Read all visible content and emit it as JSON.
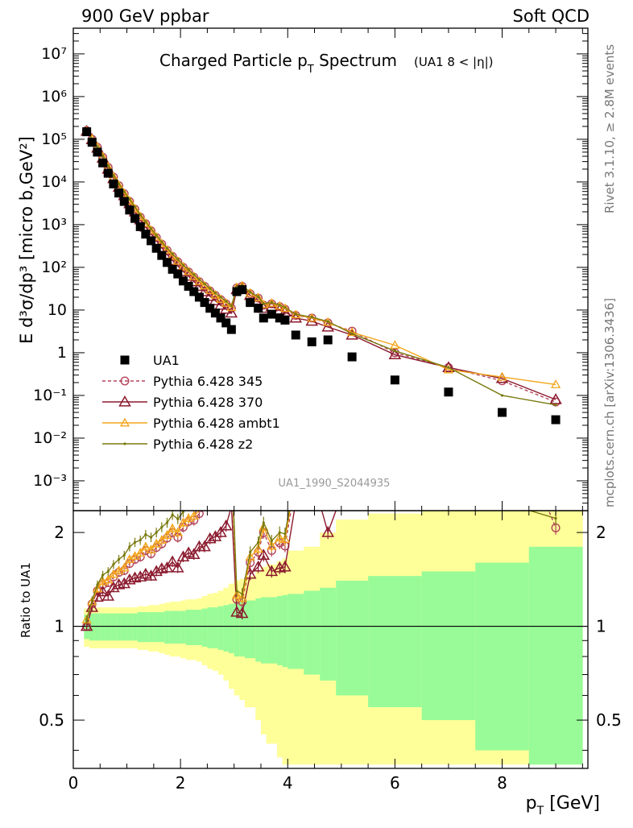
{
  "header": {
    "left": "900 GeV ppbar",
    "right": "Soft QCD"
  },
  "side_labels": {
    "top": "Rivet 3.1.10, ≥ 2.8M events",
    "bottom": "mcplots.cern.ch [arXiv:1306.3436]"
  },
  "chart_data": {
    "type": "scatter",
    "title_main": "Charged Particle p",
    "title_sub": "T",
    "title_rest": " Spectrum",
    "title_note": "(UA1   8 < |η|)",
    "analysis_id": "UA1_1990_S2044935",
    "ylabel": "E d³σ/dp³ [micro b,GeV²]",
    "xlabel_main": "p",
    "xlabel_sub": "T",
    "xlabel_rest": " [GeV]",
    "ratio_ylabel": "Ratio to UA1",
    "log_y": true,
    "xlim": [
      0,
      9.6
    ],
    "ylim": [
      0.0002,
      40000000
    ],
    "ratio_ylim": [
      0.35,
      2.35
    ],
    "x_ticks": [
      "0",
      "2",
      "4",
      "6",
      "8"
    ],
    "y_ticks": [
      "10⁻³",
      "10⁻²",
      "10⁻¹",
      "1",
      "10",
      "10²",
      "10³",
      "10⁴",
      "10⁵",
      "10⁶",
      "10⁷"
    ],
    "ratio_ticks": [
      "0.5",
      "1",
      "2"
    ],
    "colors": {
      "data": "#000000",
      "p345": "#b3445a",
      "p370": "#8b1a2e",
      "ambt1": "#f3a51a",
      "z2": "#7a7a10",
      "band_inner": "#98fb98",
      "band_outer": "#ffff99"
    },
    "legend": {
      "placement": "center-left",
      "entries": [
        "UA1",
        "Pythia 6.428 345",
        "Pythia 6.428 370",
        "Pythia 6.428 ambt1",
        "Pythia 6.428 z2"
      ]
    },
    "series": [
      {
        "name": "UA1",
        "x": [
          0.25,
          0.35,
          0.45,
          0.55,
          0.65,
          0.75,
          0.85,
          0.95,
          1.05,
          1.15,
          1.25,
          1.35,
          1.45,
          1.55,
          1.65,
          1.75,
          1.85,
          1.95,
          2.05,
          2.15,
          2.25,
          2.35,
          2.45,
          2.55,
          2.65,
          2.75,
          2.85,
          2.95,
          3.05,
          3.15,
          3.3,
          3.45,
          3.55,
          3.7,
          3.85,
          3.95,
          4.15,
          4.45,
          4.75,
          5.2,
          6.0,
          7.0,
          8.0,
          9.0
        ],
        "values": [
          150000,
          85000,
          50000,
          28000,
          16000,
          9000,
          5500,
          3500,
          2200,
          1400,
          900,
          600,
          420,
          280,
          190,
          130,
          90,
          70,
          48,
          36,
          27,
          20,
          15,
          11,
          8.5,
          6.5,
          5,
          3.5,
          27,
          30,
          15,
          11,
          6.5,
          8,
          6.5,
          5.8,
          2.6,
          1.8,
          2,
          0.8,
          0.23,
          0.12,
          0.04,
          0.027
        ]
      },
      {
        "name": "Pythia 6.428 345",
        "x": [
          0.25,
          0.35,
          0.45,
          0.55,
          0.65,
          0.75,
          0.85,
          0.95,
          1.05,
          1.15,
          1.25,
          1.35,
          1.45,
          1.55,
          1.65,
          1.75,
          1.85,
          1.95,
          2.05,
          2.15,
          2.25,
          2.35,
          2.45,
          2.55,
          2.65,
          2.75,
          2.85,
          2.95,
          3.05,
          3.15,
          3.3,
          3.45,
          3.55,
          3.7,
          3.85,
          3.95,
          4.15,
          4.45,
          4.75,
          5.2,
          6.0,
          7.0,
          8.0,
          9.0
        ],
        "values": [
          160000,
          100000,
          65000,
          38000,
          22000,
          13000,
          8200,
          5300,
          3500,
          2300,
          1500,
          1050,
          720,
          500,
          350,
          250,
          180,
          135,
          100,
          78,
          59,
          46,
          36,
          28,
          22,
          17.5,
          14,
          11,
          33,
          36,
          24,
          19,
          13,
          14,
          12,
          10.5,
          7.5,
          6.5,
          5,
          3.2,
          1.0,
          0.45,
          0.22,
          0.07
        ]
      },
      {
        "name": "Pythia 6.428 370",
        "x": [
          0.25,
          0.35,
          0.45,
          0.55,
          0.65,
          0.75,
          0.85,
          0.95,
          1.05,
          1.15,
          1.25,
          1.35,
          1.45,
          1.55,
          1.65,
          1.75,
          1.85,
          1.95,
          2.05,
          2.15,
          2.25,
          2.35,
          2.45,
          2.55,
          2.65,
          2.75,
          2.85,
          2.95,
          3.05,
          3.15,
          3.3,
          3.45,
          3.55,
          3.7,
          3.85,
          3.95,
          4.15,
          4.45,
          4.75,
          5.2,
          6.0,
          7.0,
          8.0,
          9.0
        ],
        "values": [
          155000,
          98000,
          62000,
          36000,
          20000,
          12000,
          7500,
          4800,
          3100,
          2000,
          1300,
          880,
          610,
          420,
          290,
          200,
          145,
          108,
          80,
          62,
          46,
          36,
          27,
          21,
          16.5,
          13,
          10.5,
          8.5,
          30,
          33,
          22,
          17,
          11,
          12,
          10,
          9,
          6.5,
          5.5,
          4,
          2.6,
          0.9,
          0.45,
          0.25,
          0.08
        ]
      },
      {
        "name": "Pythia 6.428 ambt1",
        "x": [
          0.25,
          0.35,
          0.45,
          0.55,
          0.65,
          0.75,
          0.85,
          0.95,
          1.05,
          1.15,
          1.25,
          1.35,
          1.45,
          1.55,
          1.65,
          1.75,
          1.85,
          1.95,
          2.05,
          2.15,
          2.25,
          2.35,
          2.45,
          2.55,
          2.65,
          2.75,
          2.85,
          2.95,
          3.05,
          3.15,
          3.3,
          3.45,
          3.55,
          3.7,
          3.85,
          3.95,
          4.15,
          4.45,
          4.75,
          5.2,
          6.0,
          7.0,
          8.0,
          9.0
        ],
        "values": [
          158000,
          102000,
          66000,
          39000,
          22500,
          13200,
          8300,
          5400,
          3600,
          2350,
          1550,
          1080,
          740,
          515,
          360,
          255,
          185,
          140,
          103,
          80,
          61,
          47,
          37,
          29,
          22.5,
          18,
          14.5,
          11.5,
          34,
          37,
          25,
          19.5,
          13.5,
          14.5,
          12.5,
          11,
          7.8,
          6.5,
          5.2,
          3.0,
          1.5,
          0.4,
          0.27,
          0.18
        ]
      },
      {
        "name": "Pythia 6.428 z2",
        "x": [
          0.25,
          0.35,
          0.45,
          0.55,
          0.65,
          0.75,
          0.85,
          0.95,
          1.05,
          1.15,
          1.25,
          1.35,
          1.45,
          1.55,
          1.65,
          1.75,
          1.85,
          1.95,
          2.05,
          2.15,
          2.25,
          2.35,
          2.45,
          2.55,
          2.65,
          2.75,
          2.85,
          2.95,
          3.05,
          3.15,
          3.3,
          3.45,
          3.55,
          3.7,
          3.85,
          3.95,
          4.15,
          4.45,
          4.75,
          5.2,
          6.0,
          7.0,
          8.0,
          9.0
        ],
        "values": [
          157000,
          103000,
          68000,
          41000,
          24000,
          14200,
          9000,
          5900,
          3950,
          2600,
          1700,
          1180,
          810,
          560,
          395,
          280,
          205,
          155,
          112,
          88,
          67,
          52,
          41,
          32,
          25,
          20,
          16,
          12.5,
          35,
          38,
          26,
          20.5,
          14,
          15,
          13,
          11.5,
          8,
          6.8,
          5.4,
          2.8,
          1.1,
          0.45,
          0.1,
          0.06
        ]
      }
    ],
    "ratio_series": [
      {
        "name": "Pythia 6.428 345",
        "values": [
          1.0,
          1.18,
          1.3,
          1.36,
          1.38,
          1.44,
          1.49,
          1.51,
          1.59,
          1.64,
          1.67,
          1.75,
          1.71,
          1.79,
          1.84,
          1.92,
          2.0,
          1.93,
          2.08,
          2.17,
          2.19,
          2.3,
          2.4,
          2.55,
          2.59,
          2.69,
          2.8,
          3.14,
          1.22,
          1.2,
          1.6,
          1.73,
          2.0,
          1.75,
          1.85,
          1.81,
          2.88,
          3.61,
          2.5,
          4.0,
          4.35,
          3.75,
          5.5,
          2.07
        ]
      },
      {
        "name": "Pythia 6.428 370",
        "values": [
          1.0,
          1.15,
          1.24,
          1.29,
          1.25,
          1.33,
          1.36,
          1.37,
          1.41,
          1.43,
          1.44,
          1.47,
          1.45,
          1.5,
          1.53,
          1.54,
          1.61,
          1.54,
          1.67,
          1.72,
          1.7,
          1.8,
          1.8,
          1.91,
          1.94,
          2.0,
          2.1,
          2.43,
          1.11,
          1.1,
          1.47,
          1.55,
          1.69,
          1.5,
          1.54,
          1.55,
          2.5,
          3.06,
          2.0,
          3.25,
          3.91,
          3.75,
          6.25,
          2.96
        ]
      },
      {
        "name": "Pythia 6.428 ambt1",
        "values": [
          1.05,
          1.2,
          1.32,
          1.39,
          1.41,
          1.47,
          1.51,
          1.54,
          1.64,
          1.68,
          1.72,
          1.8,
          1.76,
          1.84,
          1.89,
          1.96,
          2.06,
          2.0,
          2.15,
          2.22,
          2.26,
          2.35,
          2.47,
          2.64,
          2.65,
          2.77,
          2.9,
          3.29,
          1.26,
          1.23,
          1.67,
          1.77,
          2.08,
          1.81,
          1.92,
          1.9,
          3.0,
          3.61,
          2.6,
          3.75,
          6.52,
          3.33,
          6.75,
          6.67
        ]
      },
      {
        "name": "Pythia 6.428 z2",
        "values": [
          1.05,
          1.21,
          1.36,
          1.46,
          1.5,
          1.58,
          1.64,
          1.69,
          1.8,
          1.86,
          1.89,
          1.97,
          1.93,
          2.0,
          2.08,
          2.15,
          2.28,
          2.21,
          2.33,
          2.44,
          2.48,
          2.6,
          2.73,
          2.91,
          2.94,
          3.08,
          3.2,
          3.57,
          1.3,
          1.27,
          1.73,
          1.86,
          2.15,
          1.88,
          2.0,
          1.98,
          3.08,
          3.78,
          2.7,
          3.5,
          4.78,
          3.75,
          2.5,
          2.22
        ]
      }
    ],
    "ratio_bands": {
      "edges": [
        0.2,
        0.3,
        0.4,
        0.5,
        0.6,
        0.7,
        0.8,
        0.9,
        1.0,
        1.1,
        1.2,
        1.3,
        1.4,
        1.5,
        1.6,
        1.7,
        1.8,
        1.9,
        2.0,
        2.1,
        2.2,
        2.3,
        2.4,
        2.5,
        2.6,
        2.7,
        2.8,
        2.9,
        3.0,
        3.1,
        3.2,
        3.4,
        3.5,
        3.6,
        3.8,
        3.9,
        4.0,
        4.3,
        4.6,
        4.9,
        5.5,
        6.5,
        7.5,
        8.5,
        9.5
      ],
      "inner": [
        0.09,
        0.1,
        0.1,
        0.1,
        0.1,
        0.1,
        0.1,
        0.1,
        0.1,
        0.1,
        0.11,
        0.11,
        0.11,
        0.11,
        0.11,
        0.12,
        0.12,
        0.12,
        0.12,
        0.13,
        0.13,
        0.13,
        0.14,
        0.15,
        0.15,
        0.16,
        0.17,
        0.18,
        0.2,
        0.2,
        0.21,
        0.23,
        0.24,
        0.24,
        0.25,
        0.26,
        0.27,
        0.3,
        0.33,
        0.4,
        0.45,
        0.5,
        0.6,
        0.8,
        0.85
      ],
      "outer": [
        0.14,
        0.15,
        0.15,
        0.15,
        0.15,
        0.15,
        0.15,
        0.15,
        0.15,
        0.15,
        0.16,
        0.16,
        0.17,
        0.17,
        0.18,
        0.19,
        0.2,
        0.2,
        0.21,
        0.22,
        0.22,
        0.23,
        0.25,
        0.27,
        0.28,
        0.3,
        0.33,
        0.37,
        0.4,
        0.42,
        0.45,
        0.5,
        0.55,
        0.58,
        0.62,
        0.65,
        0.75,
        0.8,
        1.0,
        1.2,
        1.3,
        1.4,
        1.6,
        2.0,
        2.0
      ]
    }
  }
}
